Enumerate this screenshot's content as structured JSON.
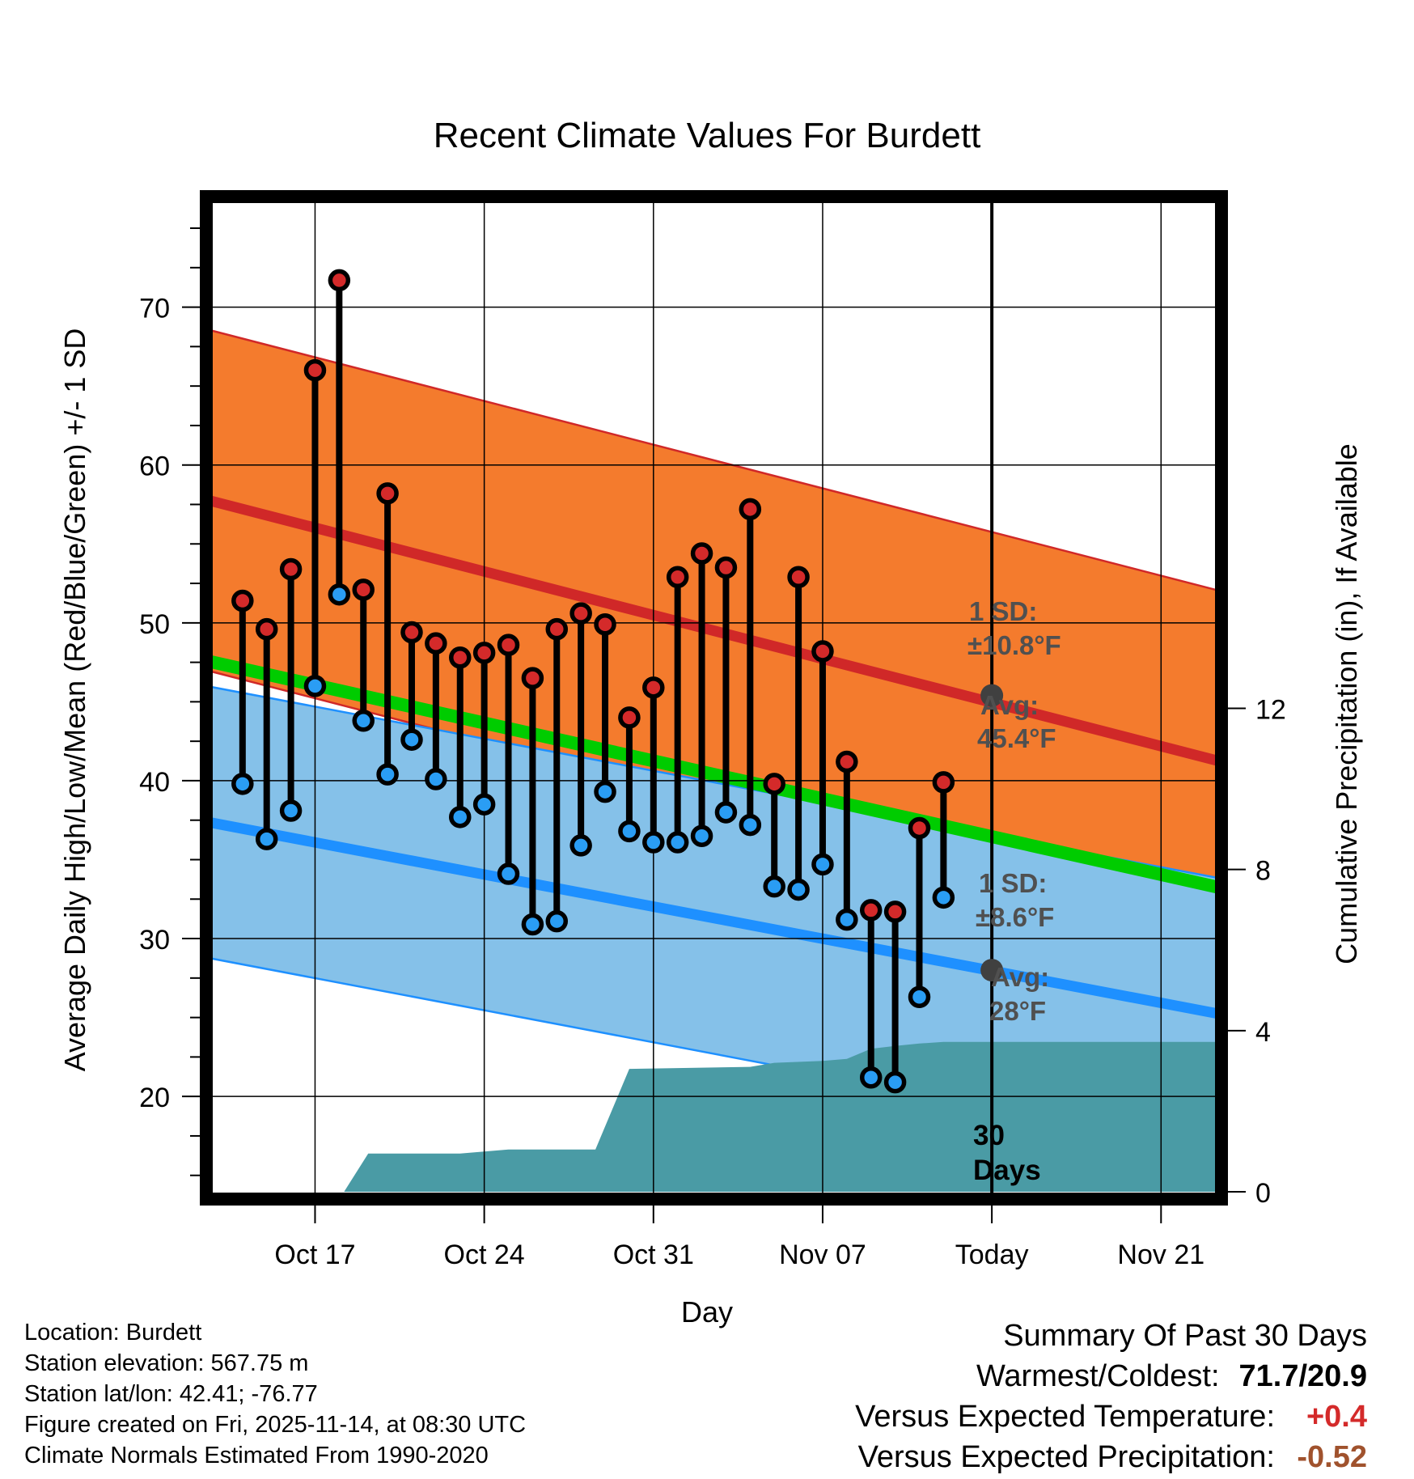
{
  "chart_data": {
    "type": "line",
    "title": "Recent Climate Values For Burdett",
    "xlabel": "Day",
    "ylabel": "Average Daily High/Low/Mean (Red/Blue/Green) +/- 1 SD",
    "y2label": "Cumulative Precipitation (in), If Available",
    "ylim": [
      13.5,
      77
    ],
    "y2lim": [
      -0.18,
      24.7
    ],
    "yticks": [
      20,
      30,
      40,
      50,
      60,
      70
    ],
    "y2ticks": [
      0,
      4,
      8,
      12
    ],
    "x_range_days": [
      -32.5,
      9.5
    ],
    "x_ticks": [
      {
        "offset": -28,
        "label": "Oct 17"
      },
      {
        "offset": -21,
        "label": "Oct 24"
      },
      {
        "offset": -14,
        "label": "Oct 31"
      },
      {
        "offset": -7,
        "label": "Nov 07"
      },
      {
        "offset": 0,
        "label": "Today"
      },
      {
        "offset": 7,
        "label": "Nov 21"
      }
    ],
    "normals": {
      "high_start": 57.8,
      "high_end": 41.2,
      "high_sd": 10.8,
      "low_start": 37.4,
      "low_end": 25.2,
      "low_sd": 8.6,
      "mean_start": 47.6,
      "mean_end": 33.2
    },
    "observed": {
      "offsets": [
        -31,
        -30,
        -29,
        -28,
        -27,
        -26,
        -25,
        -24,
        -23,
        -22,
        -21,
        -20,
        -19,
        -18,
        -17,
        -16,
        -15,
        -14,
        -13,
        -12,
        -11,
        -10,
        -9,
        -8,
        -7,
        -6,
        -5,
        -4,
        -3,
        -2
      ],
      "highs": [
        51.4,
        49.6,
        53.4,
        66.0,
        71.7,
        52.1,
        58.2,
        49.4,
        48.7,
        47.8,
        48.1,
        48.6,
        46.5,
        49.6,
        50.6,
        49.9,
        44.0,
        45.9,
        52.9,
        54.4,
        53.5,
        57.2,
        39.8,
        52.9,
        48.2,
        41.2,
        31.8,
        31.7,
        37.0,
        39.9
      ],
      "lows": [
        39.8,
        36.3,
        38.1,
        46.0,
        51.8,
        43.8,
        40.4,
        42.6,
        40.1,
        37.7,
        38.5,
        34.1,
        30.9,
        31.1,
        35.9,
        39.3,
        36.8,
        36.1,
        36.1,
        36.5,
        38.0,
        37.2,
        33.3,
        33.1,
        34.7,
        31.2,
        21.2,
        20.9,
        26.3,
        32.6
      ]
    },
    "precip": {
      "offsets": [
        -32.5,
        -26.8,
        -25.8,
        -23,
        -22,
        -20,
        -19,
        -16.4,
        -15,
        -13,
        -10,
        -9,
        -7,
        -6,
        -5,
        -4,
        -3,
        -2,
        -1,
        0,
        9.5
      ],
      "values": [
        0,
        0,
        0.95,
        0.95,
        0.95,
        1.05,
        1.05,
        1.05,
        3.05,
        3.07,
        3.1,
        3.2,
        3.25,
        3.3,
        3.55,
        3.62,
        3.68,
        3.72,
        3.72,
        3.72,
        3.72
      ]
    },
    "annotations": {
      "high_sd_label": "1 SD:",
      "high_sd_value": "±10.8°F",
      "high_avg_label": "Avg:",
      "high_avg_value": "45.4°F",
      "low_sd_label": "1 SD:",
      "low_sd_value": "±8.6°F",
      "low_avg_label": "Avg:",
      "low_avg_value": "28°F",
      "today_high_avg": 45.4,
      "today_low_avg": 28,
      "period_line1": "30",
      "period_line2": "Days"
    },
    "colors": {
      "high_band": "#f47b2d",
      "high_line": "#d02828",
      "low_band": "#85c1e9",
      "low_line": "#1e90ff",
      "mean_line": "#00cc00",
      "warm_fill": "#a01515",
      "precip": "#4a9ba5",
      "high_dot": "#d42a2a",
      "low_dot": "#2a9df4",
      "avg_dot": "#404040"
    }
  },
  "footer": {
    "location": "Location: Burdett",
    "elevation": "Station elevation: 567.75 m",
    "latlon": "Station lat/lon: 42.41; -76.77",
    "created": "Figure created on Fri, 2025-11-14, at 08:30 UTC",
    "normals": "Climate Normals Estimated From 1990-2020"
  },
  "summary": {
    "title": "Summary Of Past 30 Days",
    "warmest_label": "Warmest/Coldest:",
    "warmest_value": "71.7/20.9",
    "temp_label": "Versus Expected Temperature:",
    "temp_value": "+0.4",
    "precip_label": "Versus Expected Precipitation:",
    "precip_value": "-0.52"
  }
}
